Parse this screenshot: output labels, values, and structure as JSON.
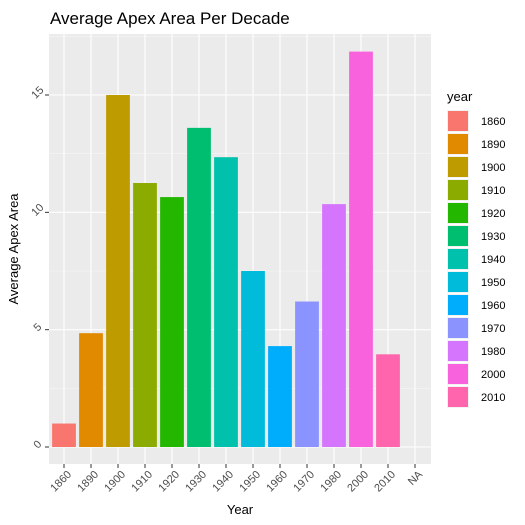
{
  "chart_data": {
    "type": "bar",
    "title": "Average Apex Area Per Decade",
    "xlabel": "Year",
    "ylabel": "Average Apex Area",
    "categories": [
      "1860",
      "1890",
      "1900",
      "1910",
      "1920",
      "1930",
      "1940",
      "1950",
      "1960",
      "1970",
      "1980",
      "2000",
      "2010",
      "NA"
    ],
    "values": [
      1.0,
      4.85,
      15.0,
      11.25,
      10.65,
      13.6,
      12.35,
      7.5,
      4.3,
      6.2,
      10.35,
      16.85,
      3.95,
      0
    ],
    "colors": [
      "#F8766D",
      "#E18A00",
      "#BE9C00",
      "#8CAB00",
      "#24B700",
      "#00BE70",
      "#00C1AB",
      "#00BBDA",
      "#00ACFC",
      "#8B93FF",
      "#D575FE",
      "#F962DD",
      "#FF65AC",
      "#FF65AC"
    ],
    "ylim": [
      0,
      17.6
    ],
    "yticks": [
      "0",
      "5",
      "10",
      "15"
    ],
    "ytick_values": [
      0,
      5,
      10,
      15
    ],
    "grid": true,
    "legend": {
      "title": "year",
      "placement": "right",
      "entries": [
        "1860",
        "1890",
        "1900",
        "1910",
        "1920",
        "1930",
        "1940",
        "1950",
        "1960",
        "1970",
        "1980",
        "2000",
        "2010"
      ]
    }
  }
}
